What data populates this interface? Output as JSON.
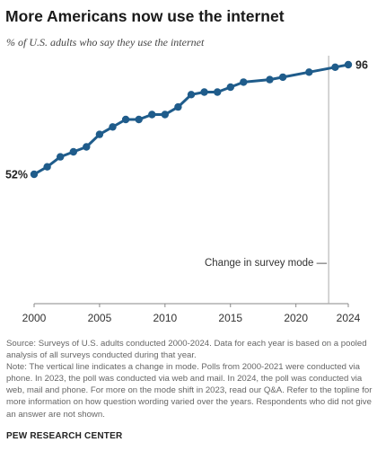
{
  "title": "More Americans now use the internet",
  "subtitle": "% of U.S. adults who say they use the internet",
  "chart_data": {
    "type": "line",
    "title": "More Americans now use the internet",
    "subtitle": "% of U.S. adults who say they use the internet",
    "x": [
      2000,
      2001,
      2002,
      2003,
      2004,
      2005,
      2006,
      2007,
      2008,
      2009,
      2010,
      2011,
      2012,
      2013,
      2014,
      2015,
      2016,
      2018,
      2019,
      2021,
      2023,
      2024
    ],
    "series": [
      {
        "values": [
          52,
          55,
          59,
          61,
          63,
          68,
          71,
          74,
          74,
          76,
          76,
          79,
          84,
          85,
          85,
          87,
          89,
          90,
          91,
          93,
          95,
          96
        ]
      }
    ],
    "xticks": [
      2000,
      2005,
      2010,
      2015,
      2020,
      2024
    ],
    "xlim": [
      2000,
      2024
    ],
    "data_labels": {
      "first": "52%",
      "last": "96"
    },
    "annotation": {
      "text": "Change in survey mode —",
      "x": 2022.5
    },
    "grid": false,
    "color": "#1f5c8b"
  },
  "footnotes": {
    "source": "Source: Surveys of U.S. adults conducted 2000-2024. Data for each year is based on a pooled analysis of all surveys conducted during that year.",
    "note": "Note: The vertical line indicates a change in mode. Polls from 2000-2021 were conducted via phone. In 2023, the poll was conducted via web and mail. In 2024, the poll was conducted via web, mail and phone. For more on the mode shift in 2023, read our Q&A. Refer to the topline for more information on how question wording varied over the years. Respondents who did not give an answer are not shown."
  },
  "brand": "PEW RESEARCH CENTER"
}
